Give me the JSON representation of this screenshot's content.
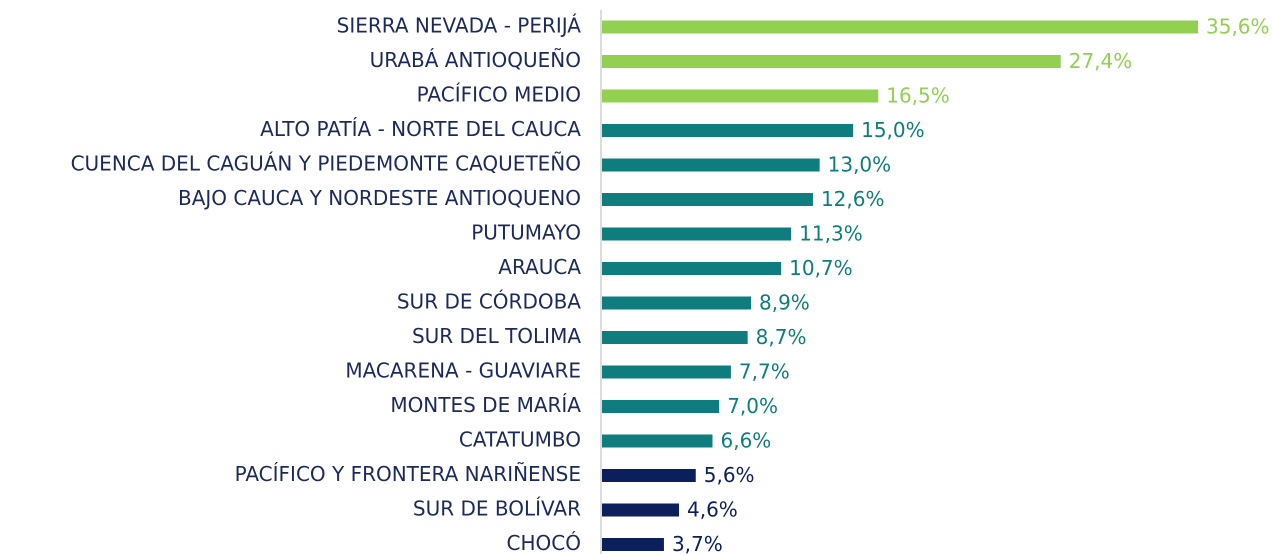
{
  "chart_data": {
    "type": "hbar",
    "categories": [
      "SIERRA NEVADA - PERIJÁ",
      "URABÁ ANTIOQUEÑO",
      "PACÍFICO MEDIO",
      "ALTO PATÍA - NORTE DEL CAUCA",
      "CUENCA DEL CAGUÁN Y PIEDEMONTE CAQUETEÑO",
      "BAJO CAUCA Y NORDESTE ANTIOQUENO",
      "PUTUMAYO",
      "ARAUCA",
      "SUR DE CÓRDOBA",
      "SUR DEL TOLIMA",
      "MACARENA - GUAVIARE",
      "MONTES DE MARÍA",
      "CATATUMBO",
      "PACÍFICO Y FRONTERA NARIÑENSE",
      "SUR DE BOLÍVAR",
      "CHOCÓ"
    ],
    "values": [
      35.6,
      27.4,
      16.5,
      15.0,
      13.0,
      12.6,
      11.3,
      10.7,
      8.9,
      8.7,
      7.7,
      7.0,
      6.6,
      5.6,
      4.6,
      3.7
    ],
    "value_labels": [
      "35,6%",
      "27,4%",
      "16,5%",
      "15,0%",
      "13,0%",
      "12,6%",
      "11,3%",
      "10,7%",
      "8,9%",
      "8,7%",
      "7,7%",
      "7,0%",
      "6,6%",
      "5,6%",
      "4,6%",
      "3,7%"
    ],
    "colors": [
      "#92d050",
      "#92d050",
      "#92d050",
      "#0f7d7d",
      "#0f7d7d",
      "#0f7d7d",
      "#0f7d7d",
      "#0f7d7d",
      "#0f7d7d",
      "#0f7d7d",
      "#0f7d7d",
      "#0f7d7d",
      "#0f7d7d",
      "#0b1f5c",
      "#0b1f5c",
      "#0b1f5c"
    ]
  }
}
